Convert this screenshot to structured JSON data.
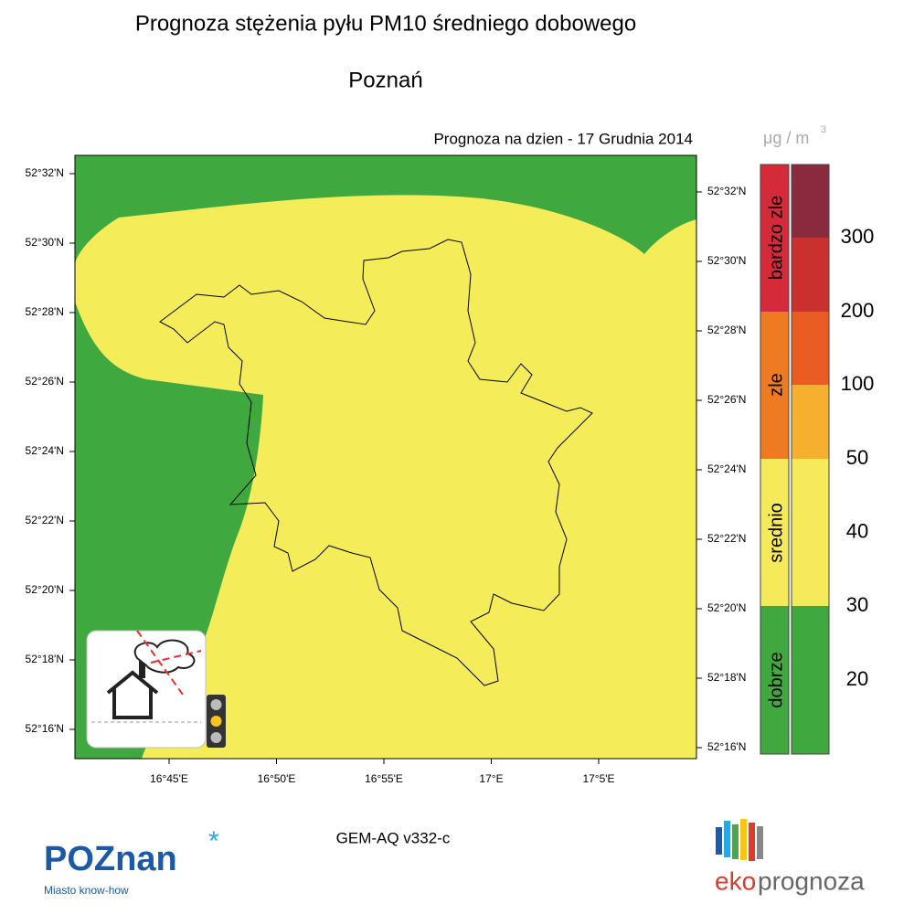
{
  "title": "Prognoza stężenia pyłu PM10 średniego dobowego",
  "subtitle": "Poznań",
  "forecast_date": "Prognoza na dzien -  17 Grudnia 2014",
  "map": {
    "left_lat_labels": [
      "52°32'N",
      "52°30'N",
      "52°28'N",
      "52°26'N",
      "52°24'N",
      "52°22'N",
      "52°20'N",
      "52°18'N",
      "52°16'N"
    ],
    "right_lat_labels": [
      "52°32'N",
      "52°30'N",
      "52°28'N",
      "52°26'N",
      "52°24'N",
      "52°22'N",
      "52°20'N",
      "52°18'N",
      "52°16'N"
    ],
    "lon_labels": [
      "16°45'E",
      "16°50'E",
      "16°55'E",
      "17°E",
      "17°5'E"
    ]
  },
  "legend": {
    "unit": "μg / m",
    "unit_exp": "3",
    "categories": [
      "bardzo zle",
      "zle",
      "srednio",
      "dobrze"
    ],
    "levels": [
      300,
      200,
      100,
      50,
      40,
      30,
      20
    ]
  },
  "model": "GEM-AQ v332-c",
  "logos": {
    "poznan": "POZnan",
    "poznan_tagline": "Miasto know-how",
    "eko": "eko",
    "prognoza": "prognoza"
  }
}
